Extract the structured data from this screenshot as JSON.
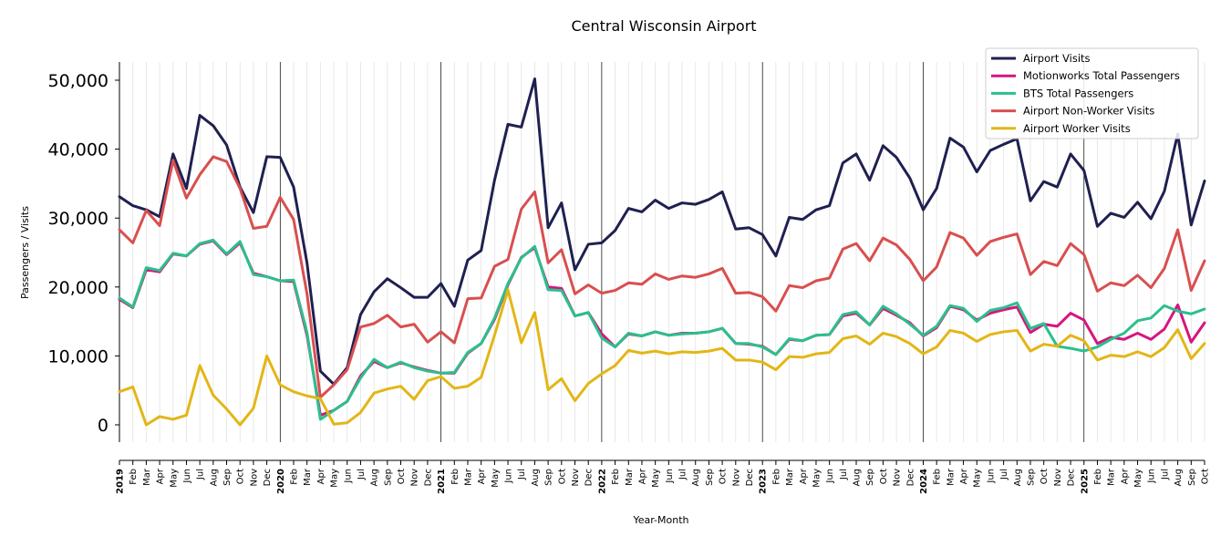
{
  "chart_data": {
    "type": "line",
    "title": "Central Wisconsin Airport",
    "xlabel": "Year-Month",
    "ylabel": "Passengers / Visits",
    "ylim": [
      -2500,
      52500
    ],
    "yticks": [
      0,
      10000,
      20000,
      30000,
      40000,
      50000
    ],
    "ytick_labels": [
      "0",
      "10,000",
      "20,000",
      "30,000",
      "40,000",
      "50,000"
    ],
    "grid": "vertical minor gridlines per month; darker lines at each January",
    "legend_position": "top-right",
    "x_labels": [
      "2019",
      "Feb",
      "Mar",
      "Apr",
      "May",
      "Jun",
      "Jul",
      "Aug",
      "Sep",
      "Oct",
      "Nov",
      "Dec",
      "2020",
      "Feb",
      "Mar",
      "Apr",
      "May",
      "Jun",
      "Jul",
      "Aug",
      "Sep",
      "Oct",
      "Nov",
      "Dec",
      "2021",
      "Feb",
      "Mar",
      "Apr",
      "May",
      "Jun",
      "Jul",
      "Aug",
      "Sep",
      "Oct",
      "Nov",
      "Dec",
      "2022",
      "Feb",
      "Mar",
      "Apr",
      "May",
      "Jun",
      "Jul",
      "Aug",
      "Sep",
      "Oct",
      "Nov",
      "Dec",
      "2023",
      "Feb",
      "Mar",
      "Apr",
      "May",
      "Jun",
      "Jul",
      "Aug",
      "Sep",
      "Oct",
      "Nov",
      "Dec",
      "2024",
      "Feb",
      "Mar",
      "Apr",
      "May",
      "Jun",
      "Jul",
      "Aug",
      "Sep",
      "Oct",
      "Nov",
      "Dec",
      "2025",
      "Feb",
      "Mar",
      "Apr",
      "May",
      "Jun",
      "Jul",
      "Aug",
      "Sep",
      "Oct"
    ],
    "series": [
      {
        "name": "Airport Visits",
        "color": "#1f2050",
        "values": [
          33100,
          31800,
          31200,
          30200,
          39300,
          34300,
          44900,
          43400,
          40600,
          34500,
          30800,
          38900,
          38800,
          34500,
          23500,
          7800,
          5900,
          8300,
          16000,
          19300,
          21200,
          19900,
          18500,
          18500,
          20500,
          17200,
          23900,
          25300,
          35500,
          43600,
          43200,
          50200,
          28600,
          32200,
          22500,
          26200,
          26400,
          28200,
          31400,
          30900,
          32600,
          31400,
          32200,
          32000,
          32700,
          33800,
          28400,
          28600,
          27600,
          24500,
          30100,
          29800,
          31200,
          31800,
          38000,
          39300,
          35500,
          40500,
          38800,
          35800,
          31200,
          34300,
          41600,
          40300,
          36700,
          39800,
          40700,
          41500,
          32500,
          35300,
          34500,
          39300,
          36900,
          28800,
          30700,
          30100,
          32300,
          29900,
          33900,
          42200,
          29000,
          35400
        ]
      },
      {
        "name": "Motionworks Total Passengers",
        "color": "#d6157e",
        "values": [
          18200,
          17000,
          22500,
          22200,
          24800,
          24500,
          26200,
          26700,
          24700,
          26400,
          22000,
          21500,
          20900,
          20800,
          13000,
          1400,
          2100,
          3400,
          7100,
          9200,
          8300,
          9000,
          8400,
          7900,
          7500,
          7500,
          10400,
          11800,
          15300,
          20300,
          24300,
          25700,
          20000,
          19800,
          15800,
          16300,
          13200,
          11300,
          13200,
          12900,
          13500,
          13000,
          13300,
          13300,
          13500,
          14000,
          11800,
          11700,
          11400,
          10200,
          12400,
          12200,
          13000,
          13100,
          15800,
          16200,
          14500,
          16900,
          15900,
          14800,
          12900,
          14100,
          17200,
          16700,
          15200,
          16200,
          16700,
          17100,
          13400,
          14600,
          14300,
          16200,
          15200,
          11800,
          12700,
          12400,
          13300,
          12400,
          13900,
          17400,
          12000,
          14800
        ]
      },
      {
        "name": "BTS Total Passengers",
        "color": "#2ac08d",
        "values": [
          18400,
          17100,
          22800,
          22400,
          24900,
          24500,
          26300,
          26800,
          24800,
          26600,
          21800,
          21500,
          20900,
          21000,
          13400,
          800,
          2100,
          3400,
          6800,
          9500,
          8300,
          9100,
          8300,
          7800,
          7500,
          7600,
          10500,
          11800,
          15500,
          20500,
          24200,
          25900,
          19600,
          19500,
          15800,
          16300,
          12600,
          11300,
          13300,
          12900,
          13500,
          13000,
          13200,
          13300,
          13500,
          14000,
          11800,
          11800,
          11300,
          10200,
          12500,
          12200,
          13000,
          13100,
          16000,
          16400,
          14500,
          17200,
          16100,
          14600,
          13000,
          14300,
          17300,
          16900,
          15000,
          16600,
          17000,
          17700,
          14000,
          14700,
          11400,
          11100,
          10700,
          11300,
          12400,
          13300,
          15100,
          15500,
          17300,
          16500,
          16100,
          16800
        ]
      },
      {
        "name": "Airport Non-Worker Visits",
        "color": "#d94f4f",
        "values": [
          28300,
          26400,
          31100,
          28900,
          38400,
          32900,
          36300,
          38900,
          38200,
          34300,
          28500,
          28800,
          33000,
          29800,
          19000,
          4000,
          5800,
          8000,
          14200,
          14700,
          15900,
          14200,
          14600,
          12000,
          13500,
          11900,
          18300,
          18400,
          23000,
          24000,
          31300,
          33800,
          23500,
          25400,
          19000,
          20300,
          19100,
          19500,
          20600,
          20400,
          21900,
          21100,
          21600,
          21400,
          21900,
          22700,
          19100,
          19200,
          18600,
          16500,
          20200,
          19900,
          20900,
          21300,
          25500,
          26300,
          23800,
          27100,
          26100,
          24000,
          20900,
          22900,
          27900,
          27100,
          24600,
          26600,
          27200,
          27700,
          21800,
          23700,
          23100,
          26300,
          24700,
          19400,
          20600,
          20200,
          21700,
          19900,
          22700,
          28300,
          19500,
          23800
        ]
      },
      {
        "name": "Airport Worker Visits",
        "color": "#e3b616",
        "values": [
          4800,
          5500,
          0,
          1200,
          800,
          1400,
          8600,
          4300,
          2300,
          0,
          2400,
          10000,
          5800,
          4800,
          4200,
          3800,
          100,
          300,
          1800,
          4600,
          5200,
          5600,
          3700,
          6400,
          7000,
          5300,
          5600,
          6900,
          13000,
          19600,
          11900,
          16300,
          5100,
          6700,
          3500,
          6000,
          7400,
          8600,
          10800,
          10400,
          10700,
          10300,
          10600,
          10500,
          10700,
          11100,
          9400,
          9400,
          9100,
          8000,
          9900,
          9800,
          10300,
          10500,
          12500,
          12900,
          11700,
          13300,
          12800,
          11800,
          10300,
          11300,
          13700,
          13300,
          12100,
          13100,
          13500,
          13700,
          10700,
          11700,
          11400,
          13000,
          12200,
          9400,
          10100,
          9900,
          10600,
          9900,
          11200,
          13800,
          9600,
          11800
        ]
      }
    ]
  }
}
